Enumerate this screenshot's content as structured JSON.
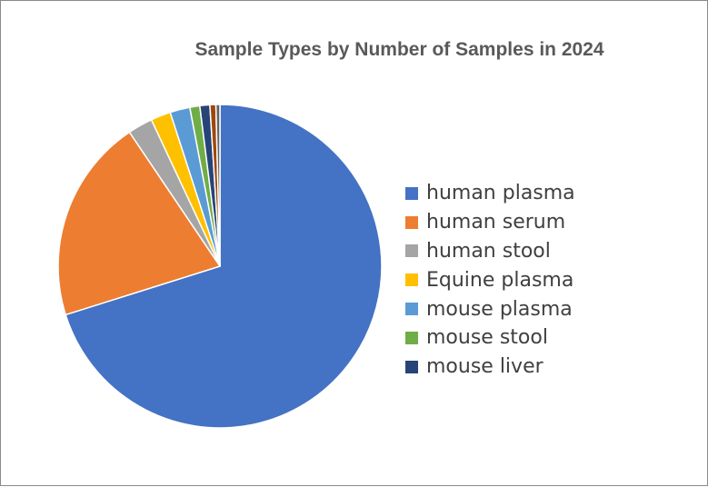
{
  "chart_data": {
    "type": "pie",
    "title": "Sample Types by Number of Samples in 2024",
    "categories": [
      "human plasma",
      "human serum",
      "human stool",
      "Equine plasma",
      "mouse plasma",
      "mouse stool",
      "mouse liver",
      "",
      ""
    ],
    "values": [
      70.5,
      20.5,
      2.5,
      2.0,
      2.0,
      1.0,
      1.0,
      0.6,
      0.4
    ],
    "colors": [
      "#4472C4",
      "#ED7D31",
      "#A5A5A5",
      "#FFC000",
      "#5B9BD5",
      "#70AD47",
      "#264478",
      "#9E480E",
      "#636363"
    ],
    "legend": {
      "placement": "right",
      "entries": [
        "human plasma",
        "human serum",
        "human stool",
        "Equine plasma",
        "mouse plasma",
        "mouse stool",
        "mouse liver"
      ]
    }
  }
}
